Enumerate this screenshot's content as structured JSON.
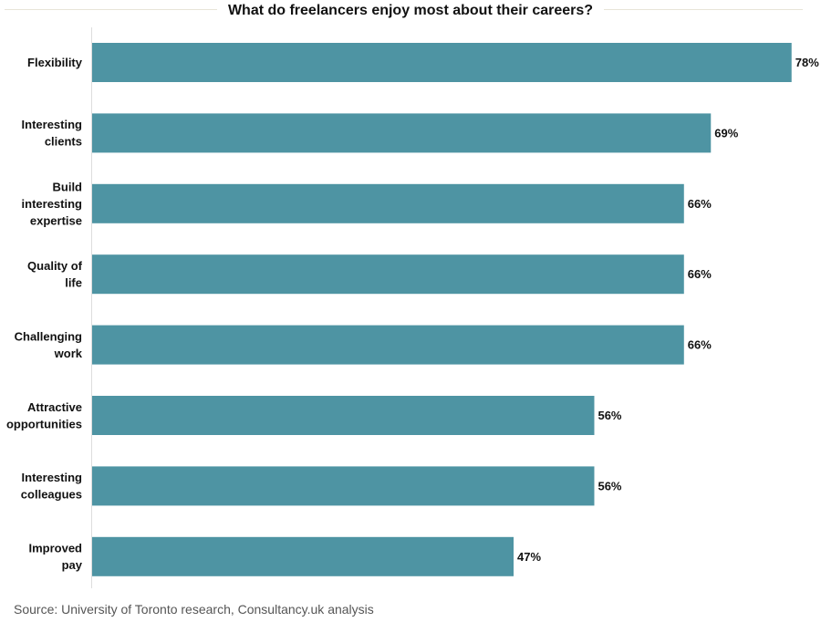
{
  "chart_data": {
    "type": "bar",
    "orientation": "horizontal",
    "title": "What do freelancers enjoy most about their careers?",
    "categories": [
      [
        "Flexibility"
      ],
      [
        "Interesting",
        "clients"
      ],
      [
        "Build",
        "interesting",
        "expertise"
      ],
      [
        "Quality of",
        "life"
      ],
      [
        "Challenging",
        "work"
      ],
      [
        "Attractive",
        "opportunities"
      ],
      [
        "Interesting",
        "colleagues"
      ],
      [
        "Improved",
        "pay"
      ]
    ],
    "values": [
      78,
      69,
      66,
      66,
      66,
      56,
      56,
      47
    ],
    "value_labels": [
      "78%",
      "69%",
      "66%",
      "66%",
      "66%",
      "56%",
      "56%",
      "47%"
    ],
    "xlim": [
      0,
      80
    ],
    "grid": false,
    "legend": "none",
    "bar_color": "#4e94a3"
  },
  "source": "Source: University of Toronto research, Consultancy.uk analysis"
}
